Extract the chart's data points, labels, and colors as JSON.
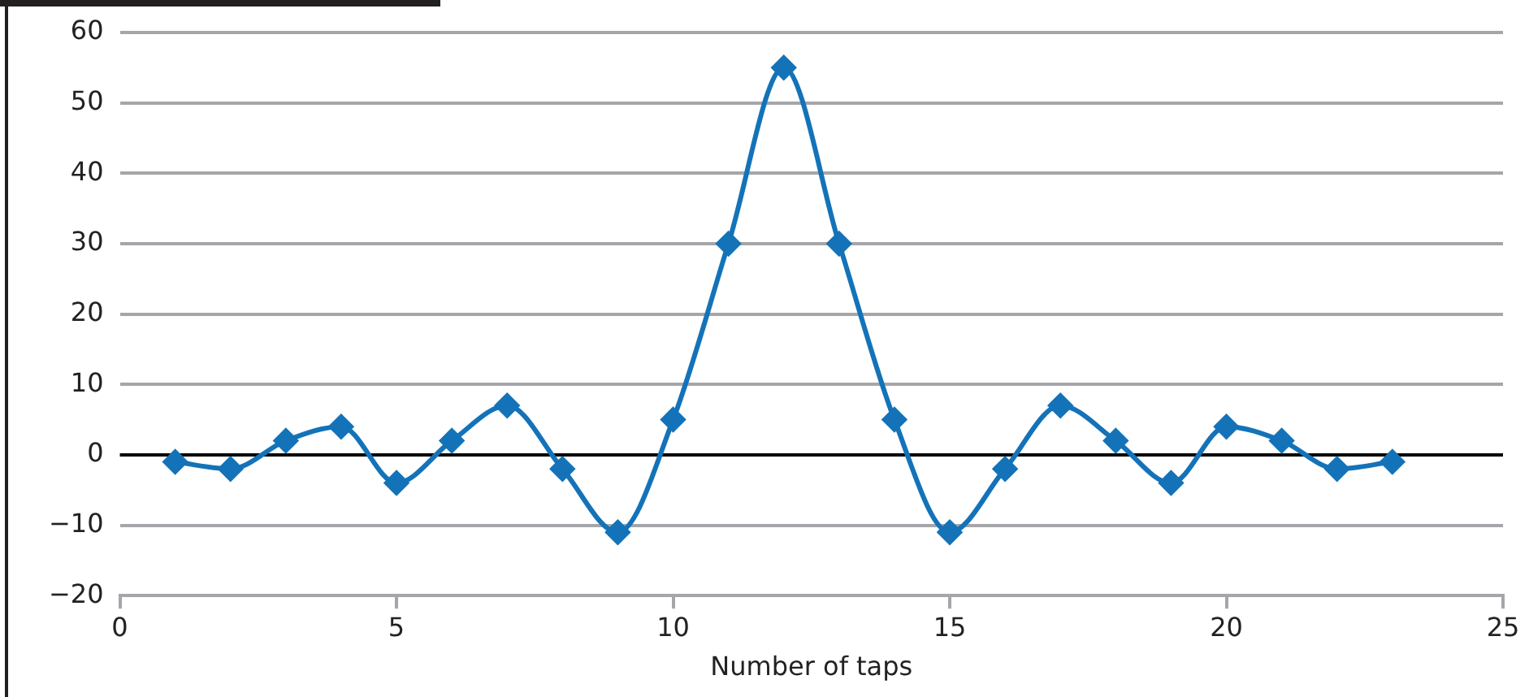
{
  "chart_data": {
    "type": "line",
    "xlabel": "Number of taps",
    "x": [
      1,
      2,
      3,
      4,
      5,
      6,
      7,
      8,
      9,
      10,
      11,
      12,
      13,
      14,
      15,
      16,
      17,
      18,
      19,
      20,
      21,
      22,
      23
    ],
    "series": [
      {
        "color": "#1473b8",
        "values": [
          -1,
          -2,
          2,
          4,
          -4,
          2,
          7,
          -2,
          -11,
          5,
          30,
          55,
          30,
          5,
          -11,
          -2,
          7,
          2,
          -4,
          4,
          2,
          -2,
          -1
        ]
      }
    ],
    "xlim": [
      0,
      25
    ],
    "xticks": [
      0,
      5,
      10,
      15,
      20,
      25
    ],
    "ylim": [
      -20,
      60
    ],
    "yticks": [
      -20,
      -10,
      0,
      10,
      20,
      30,
      40,
      50,
      60
    ],
    "grid": "y",
    "legend": false,
    "marker": "diamond",
    "line_style": "solid",
    "ref_lines": [
      {
        "axis": "y",
        "value": 0,
        "color": "#000000"
      }
    ]
  }
}
